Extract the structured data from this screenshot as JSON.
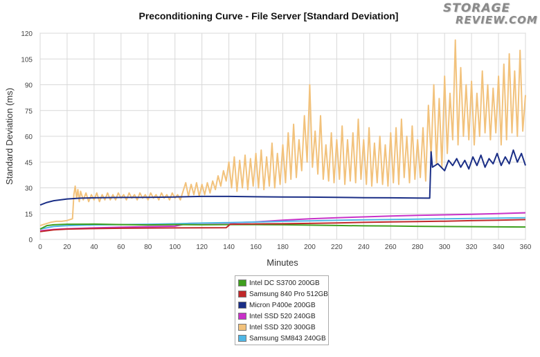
{
  "logo": {
    "line1": "STORAGE",
    "line2": "REVIEW.COM"
  },
  "chart_data": {
    "type": "line",
    "title": "Preconditioning Curve - File Server [Standard Deviation]",
    "xlabel": "Minutes",
    "ylabel": "Standard Deviation (ms)",
    "xlim": [
      0,
      360
    ],
    "ylim": [
      0,
      120
    ],
    "xticks": [
      0,
      20,
      40,
      60,
      80,
      100,
      120,
      140,
      160,
      180,
      200,
      220,
      240,
      260,
      280,
      300,
      320,
      340,
      360
    ],
    "yticks": [
      0,
      15,
      30,
      45,
      60,
      75,
      90,
      105,
      120
    ],
    "grid": true,
    "legend_position": "bottom-center",
    "series": [
      {
        "name": "Intel DC S3700 200GB",
        "color": "#3f9f1e",
        "points": [
          [
            0,
            6
          ],
          [
            5,
            8
          ],
          [
            10,
            8.5
          ],
          [
            20,
            8.8
          ],
          [
            40,
            8.9
          ],
          [
            60,
            8.6
          ],
          [
            80,
            8.4
          ],
          [
            100,
            8.6
          ],
          [
            120,
            8.5
          ],
          [
            140,
            8.6
          ],
          [
            160,
            8.6
          ],
          [
            180,
            8.5
          ],
          [
            200,
            8.3
          ],
          [
            220,
            8.1
          ],
          [
            240,
            7.9
          ],
          [
            260,
            7.8
          ],
          [
            280,
            7.6
          ],
          [
            300,
            7.5
          ],
          [
            320,
            7.4
          ],
          [
            340,
            7.3
          ],
          [
            360,
            7.2
          ]
        ]
      },
      {
        "name": "Samsung 840 Pro 512GB",
        "color": "#c0282a",
        "points": [
          [
            0,
            4.5
          ],
          [
            10,
            5.5
          ],
          [
            20,
            6
          ],
          [
            40,
            6.3
          ],
          [
            60,
            6.5
          ],
          [
            80,
            6.6
          ],
          [
            100,
            6.7
          ],
          [
            138,
            6.8
          ],
          [
            141,
            8.8
          ],
          [
            160,
            9
          ],
          [
            180,
            9.1
          ],
          [
            200,
            9.3
          ],
          [
            220,
            9.6
          ],
          [
            240,
            9.9
          ],
          [
            260,
            10.2
          ],
          [
            280,
            10.4
          ],
          [
            300,
            10.6
          ],
          [
            320,
            10.9
          ],
          [
            340,
            11.2
          ],
          [
            360,
            11.5
          ]
        ]
      },
      {
        "name": "Micron P400e 200GB",
        "color": "#1a2e86",
        "points": [
          [
            0,
            20
          ],
          [
            5,
            21.5
          ],
          [
            10,
            22.5
          ],
          [
            20,
            23.5
          ],
          [
            30,
            24
          ],
          [
            40,
            24.2
          ],
          [
            60,
            24.4
          ],
          [
            80,
            24.5
          ],
          [
            100,
            24.7
          ],
          [
            120,
            25
          ],
          [
            140,
            25
          ],
          [
            160,
            24.8
          ],
          [
            180,
            24.7
          ],
          [
            200,
            24.6
          ],
          [
            220,
            24.5
          ],
          [
            240,
            24.3
          ],
          [
            260,
            24.2
          ],
          [
            280,
            24.1
          ],
          [
            289,
            24
          ],
          [
            290,
            51
          ],
          [
            291,
            42
          ],
          [
            295,
            44
          ],
          [
            300,
            40
          ],
          [
            303,
            46
          ],
          [
            306,
            43
          ],
          [
            309,
            47
          ],
          [
            312,
            42
          ],
          [
            315,
            46
          ],
          [
            318,
            41
          ],
          [
            321,
            48
          ],
          [
            324,
            43
          ],
          [
            327,
            49
          ],
          [
            330,
            42
          ],
          [
            333,
            47
          ],
          [
            336,
            44
          ],
          [
            339,
            50
          ],
          [
            342,
            43
          ],
          [
            345,
            48
          ],
          [
            348,
            44
          ],
          [
            351,
            52
          ],
          [
            354,
            45
          ],
          [
            357,
            50
          ],
          [
            360,
            43
          ]
        ]
      },
      {
        "name": "Intel SSD 520 240GB",
        "color": "#c831c8",
        "points": [
          [
            0,
            5
          ],
          [
            10,
            5.8
          ],
          [
            20,
            6.2
          ],
          [
            40,
            6.7
          ],
          [
            60,
            7.1
          ],
          [
            80,
            7.4
          ],
          [
            100,
            7.7
          ],
          [
            105,
            8.5
          ],
          [
            110,
            9.3
          ],
          [
            140,
            9.6
          ],
          [
            160,
            10.2
          ],
          [
            180,
            11.2
          ],
          [
            200,
            12
          ],
          [
            220,
            12.6
          ],
          [
            240,
            13.1
          ],
          [
            260,
            13.6
          ],
          [
            280,
            14
          ],
          [
            300,
            14.3
          ],
          [
            320,
            14.6
          ],
          [
            340,
            15
          ],
          [
            360,
            15.5
          ]
        ]
      },
      {
        "name": "Intel SSD 320 300GB",
        "color": "#f2c27c",
        "points": [
          [
            0,
            8
          ],
          [
            4,
            9
          ],
          [
            8,
            10
          ],
          [
            12,
            10.5
          ],
          [
            16,
            10.5
          ],
          [
            20,
            11
          ],
          [
            24,
            12
          ],
          [
            25,
            26
          ],
          [
            26,
            31
          ],
          [
            27,
            24
          ],
          [
            28,
            29
          ],
          [
            29,
            22
          ],
          [
            30,
            28
          ],
          [
            32,
            23
          ],
          [
            34,
            27
          ],
          [
            36,
            22
          ],
          [
            38,
            26
          ],
          [
            40,
            23
          ],
          [
            42,
            27
          ],
          [
            44,
            22
          ],
          [
            46,
            26
          ],
          [
            48,
            23
          ],
          [
            50,
            27
          ],
          [
            52,
            23
          ],
          [
            54,
            26
          ],
          [
            56,
            23
          ],
          [
            58,
            27
          ],
          [
            60,
            24
          ],
          [
            62,
            26
          ],
          [
            64,
            23
          ],
          [
            66,
            27
          ],
          [
            68,
            24
          ],
          [
            70,
            26
          ],
          [
            72,
            23
          ],
          [
            74,
            27
          ],
          [
            76,
            24
          ],
          [
            78,
            26
          ],
          [
            80,
            23
          ],
          [
            82,
            27
          ],
          [
            84,
            24
          ],
          [
            86,
            26
          ],
          [
            88,
            23
          ],
          [
            90,
            27
          ],
          [
            92,
            24
          ],
          [
            94,
            26
          ],
          [
            96,
            23
          ],
          [
            98,
            27
          ],
          [
            100,
            24
          ],
          [
            102,
            26
          ],
          [
            104,
            23
          ],
          [
            106,
            28
          ],
          [
            108,
            33
          ],
          [
            110,
            25
          ],
          [
            112,
            32
          ],
          [
            114,
            26
          ],
          [
            116,
            33
          ],
          [
            118,
            25
          ],
          [
            120,
            32
          ],
          [
            122,
            26
          ],
          [
            124,
            33
          ],
          [
            126,
            27
          ],
          [
            128,
            34
          ],
          [
            130,
            29
          ],
          [
            132,
            37
          ],
          [
            134,
            31
          ],
          [
            136,
            40
          ],
          [
            138,
            34
          ],
          [
            140,
            45
          ],
          [
            142,
            30
          ],
          [
            144,
            48
          ],
          [
            146,
            28
          ],
          [
            148,
            46
          ],
          [
            150,
            30
          ],
          [
            152,
            49
          ],
          [
            154,
            29
          ],
          [
            156,
            47
          ],
          [
            158,
            31
          ],
          [
            160,
            50
          ],
          [
            162,
            30
          ],
          [
            164,
            52
          ],
          [
            166,
            29
          ],
          [
            168,
            48
          ],
          [
            170,
            31
          ],
          [
            172,
            56
          ],
          [
            174,
            30
          ],
          [
            176,
            50
          ],
          [
            178,
            32
          ],
          [
            180,
            55
          ],
          [
            182,
            33
          ],
          [
            184,
            62
          ],
          [
            186,
            35
          ],
          [
            188,
            67
          ],
          [
            190,
            36
          ],
          [
            192,
            58
          ],
          [
            194,
            40
          ],
          [
            196,
            72
          ],
          [
            198,
            45
          ],
          [
            200,
            90
          ],
          [
            202,
            42
          ],
          [
            204,
            63
          ],
          [
            206,
            38
          ],
          [
            208,
            72
          ],
          [
            210,
            35
          ],
          [
            212,
            55
          ],
          [
            214,
            34
          ],
          [
            216,
            62
          ],
          [
            218,
            33
          ],
          [
            220,
            58
          ],
          [
            222,
            35
          ],
          [
            224,
            66
          ],
          [
            226,
            32
          ],
          [
            228,
            58
          ],
          [
            230,
            34
          ],
          [
            232,
            62
          ],
          [
            234,
            33
          ],
          [
            236,
            70
          ],
          [
            238,
            35
          ],
          [
            240,
            58
          ],
          [
            242,
            32
          ],
          [
            244,
            65
          ],
          [
            246,
            31
          ],
          [
            248,
            56
          ],
          [
            250,
            33
          ],
          [
            252,
            60
          ],
          [
            254,
            32
          ],
          [
            256,
            55
          ],
          [
            258,
            31
          ],
          [
            260,
            62
          ],
          [
            262,
            33
          ],
          [
            264,
            65
          ],
          [
            266,
            32
          ],
          [
            268,
            70
          ],
          [
            270,
            36
          ],
          [
            272,
            60
          ],
          [
            274,
            33
          ],
          [
            276,
            66
          ],
          [
            278,
            35
          ],
          [
            280,
            58
          ],
          [
            282,
            36
          ],
          [
            284,
            65
          ],
          [
            286,
            34
          ],
          [
            288,
            78
          ],
          [
            290,
            48
          ],
          [
            292,
            90
          ],
          [
            294,
            44
          ],
          [
            296,
            82
          ],
          [
            298,
            42
          ],
          [
            300,
            95
          ],
          [
            302,
            50
          ],
          [
            304,
            85
          ],
          [
            306,
            58
          ],
          [
            308,
            116
          ],
          [
            310,
            55
          ],
          [
            312,
            100
          ],
          [
            314,
            60
          ],
          [
            316,
            90
          ],
          [
            318,
            58
          ],
          [
            320,
            92
          ],
          [
            322,
            55
          ],
          [
            324,
            85
          ],
          [
            326,
            60
          ],
          [
            328,
            98
          ],
          [
            330,
            62
          ],
          [
            332,
            90
          ],
          [
            334,
            58
          ],
          [
            336,
            88
          ],
          [
            338,
            62
          ],
          [
            340,
            95
          ],
          [
            342,
            55
          ],
          [
            344,
            102
          ],
          [
            346,
            58
          ],
          [
            348,
            108
          ],
          [
            350,
            62
          ],
          [
            352,
            98
          ],
          [
            354,
            60
          ],
          [
            356,
            110
          ],
          [
            358,
            63
          ],
          [
            360,
            84
          ]
        ]
      },
      {
        "name": "Samsung SM843 240GB",
        "color": "#4fb7e6",
        "points": [
          [
            0,
            6
          ],
          [
            10,
            7.5
          ],
          [
            20,
            8
          ],
          [
            40,
            8.4
          ],
          [
            60,
            8.6
          ],
          [
            80,
            8.8
          ],
          [
            100,
            9.1
          ],
          [
            120,
            9.5
          ],
          [
            140,
            9.8
          ],
          [
            160,
            10.1
          ],
          [
            180,
            10.5
          ],
          [
            200,
            10.8
          ],
          [
            220,
            11.1
          ],
          [
            240,
            11.4
          ],
          [
            260,
            11.6
          ],
          [
            280,
            11.8
          ],
          [
            300,
            12
          ],
          [
            320,
            12.2
          ],
          [
            340,
            12.4
          ],
          [
            360,
            12.6
          ]
        ]
      }
    ]
  }
}
